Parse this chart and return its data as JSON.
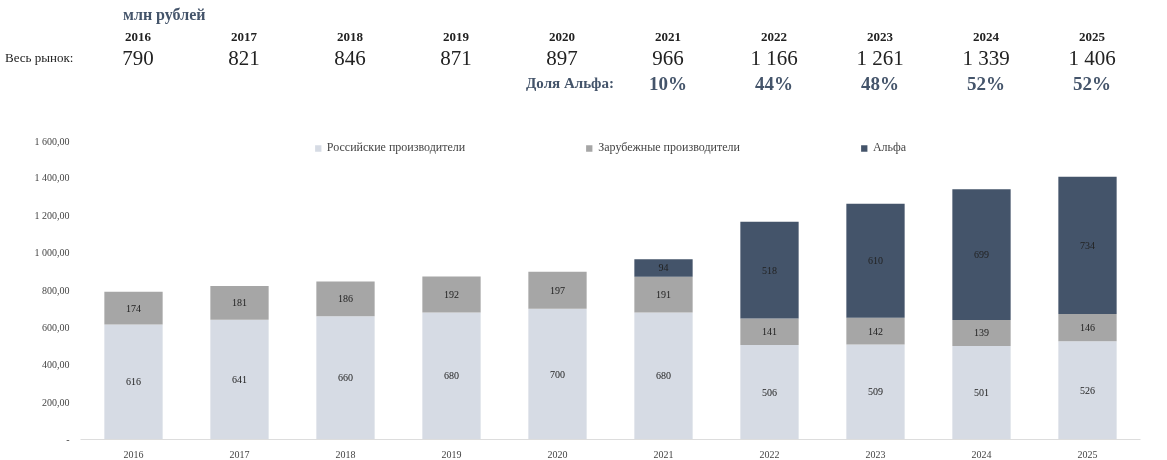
{
  "chart_data": {
    "type": "bar",
    "title": "млн рублей",
    "stacked": true,
    "categories": [
      "2016",
      "2017",
      "2018",
      "2019",
      "2020",
      "2021",
      "2022",
      "2023",
      "2024",
      "2025"
    ],
    "series": [
      {
        "name": "Российские производители",
        "color": "#d6dbe4",
        "values": [
          616,
          641,
          660,
          680,
          700,
          680,
          506,
          509,
          501,
          526
        ]
      },
      {
        "name": "Зарубежные производители",
        "color": "#a6a6a6",
        "values": [
          174,
          181,
          186,
          192,
          197,
          191,
          141,
          142,
          139,
          146
        ]
      },
      {
        "name": "Альфа",
        "color": "#44546a",
        "values": [
          null,
          null,
          null,
          null,
          null,
          94,
          518,
          610,
          699,
          734
        ]
      }
    ],
    "annotations": [
      "Весь рынок:",
      "790",
      "821",
      "846",
      "871",
      "897",
      "966",
      "1 166",
      "1 261",
      "1 339",
      "1 406",
      "Доля Альфа:",
      "10%",
      "44%",
      "48%",
      "52%",
      "52%"
    ],
    "ylim": [
      0,
      1600
    ],
    "yticks": [
      {
        "value": 0,
        "label": "-"
      },
      {
        "value": 200,
        "label": "200,00"
      },
      {
        "value": 400,
        "label": "400,00"
      },
      {
        "value": 600,
        "label": "600,00"
      },
      {
        "value": 800,
        "label": "800,00"
      },
      {
        "value": 1000,
        "label": "1 000,00"
      },
      {
        "value": 1200,
        "label": "1 200,00"
      },
      {
        "value": 1400,
        "label": "1 400,00"
      },
      {
        "value": 1600,
        "label": "1 600,00"
      }
    ],
    "data_labels": true,
    "legend": "top",
    "grid": false
  }
}
